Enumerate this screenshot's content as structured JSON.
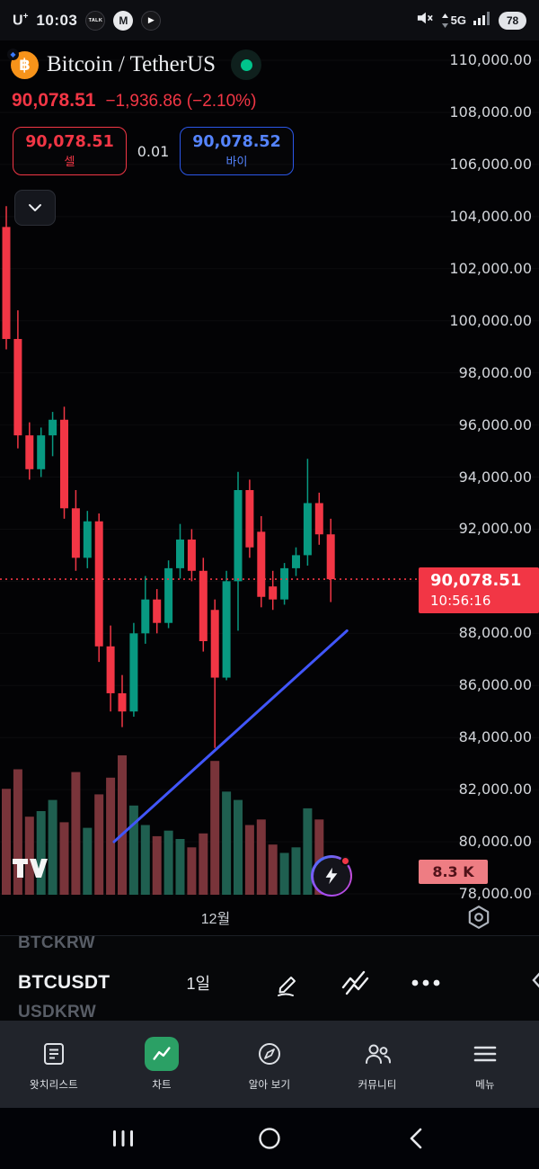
{
  "status_bar": {
    "carrier": "U",
    "carrier_sup": "+",
    "time": "10:03",
    "kakao_text": "TALK",
    "gmail_text": "M",
    "play_glyph": "▶",
    "network": "5G",
    "battery_percent": "78"
  },
  "header": {
    "title": "Bitcoin / TetherUS",
    "bitcoin_glyph": "฿",
    "badge_glyph": "◆",
    "price": "90,078.51",
    "change": "−1,936.86 (−2.10%)",
    "sell_price": "90,078.51",
    "sell_label": "셀",
    "spread": "0.01",
    "buy_price": "90,078.52",
    "buy_label": "바이"
  },
  "ticker_panel": {
    "prev_symbol": "BTCKRW",
    "symbol": "BTCUSDT",
    "interval": "1일",
    "next_symbol": "USDKRW"
  },
  "bottom_nav": {
    "active_index": 1,
    "items": [
      {
        "label": "왓치리스트"
      },
      {
        "label": "차트"
      },
      {
        "label": "알아 보기"
      },
      {
        "label": "커뮤니티"
      },
      {
        "label": "메뉴"
      }
    ]
  },
  "chart_data": {
    "type": "candlestick",
    "symbol": "BTCUSDT",
    "interval": "1일",
    "title": "Bitcoin / TetherUS",
    "last_price": 90078.51,
    "last_price_label": "90,078.51",
    "countdown": "10:56:16",
    "volume_label": "8.3 K",
    "x_label": "12월",
    "y_axis": {
      "min": 78000,
      "max": 110000,
      "tick_step": 2000,
      "ticks": [
        {
          "price": 110000,
          "label": "110,000.00"
        },
        {
          "price": 108000,
          "label": "108,000.00"
        },
        {
          "price": 106000,
          "label": "106,000.00"
        },
        {
          "price": 104000,
          "label": "104,000.00"
        },
        {
          "price": 102000,
          "label": "102,000.00"
        },
        {
          "price": 100000,
          "label": "100,000.00"
        },
        {
          "price": 98000,
          "label": "98,000.00"
        },
        {
          "price": 96000,
          "label": "96,000.00"
        },
        {
          "price": 94000,
          "label": "94,000.00"
        },
        {
          "price": 92000,
          "label": "92,000.00"
        },
        {
          "price": 90000,
          "label": "90,000.00"
        },
        {
          "price": 88000,
          "label": "88,000.00"
        },
        {
          "price": 86000,
          "label": "86,000.00"
        },
        {
          "price": 84000,
          "label": "84,000.00"
        },
        {
          "price": 82000,
          "label": "82,000.00"
        },
        {
          "price": 80000,
          "label": "80,000.00"
        },
        {
          "price": 78000,
          "label": "78,000.00"
        }
      ]
    },
    "candles": [
      [
        103600,
        104400,
        98900,
        99300
      ],
      [
        99300,
        100400,
        95100,
        95600
      ],
      [
        95600,
        96100,
        93900,
        94300
      ],
      [
        94300,
        95900,
        94000,
        95600
      ],
      [
        95600,
        96500,
        94800,
        96200
      ],
      [
        96200,
        96700,
        92400,
        92800
      ],
      [
        92800,
        93500,
        90400,
        90900
      ],
      [
        90900,
        92700,
        90500,
        92300
      ],
      [
        92300,
        92600,
        86900,
        87500
      ],
      [
        87500,
        88300,
        85000,
        85700
      ],
      [
        85700,
        86400,
        84400,
        85000
      ],
      [
        85000,
        88400,
        84800,
        88000
      ],
      [
        88000,
        90200,
        87600,
        89300
      ],
      [
        89300,
        89700,
        88000,
        88400
      ],
      [
        88400,
        90800,
        88200,
        90500
      ],
      [
        90500,
        92200,
        90100,
        91600
      ],
      [
        91600,
        92000,
        90000,
        90400
      ],
      [
        90400,
        90900,
        87300,
        87700
      ],
      [
        88900,
        89300,
        83600,
        86300
      ],
      [
        86300,
        90400,
        86200,
        90000
      ],
      [
        90000,
        94200,
        88100,
        93500
      ],
      [
        93500,
        93900,
        90900,
        91300
      ],
      [
        91900,
        92500,
        89000,
        89400
      ],
      [
        89800,
        90400,
        88900,
        89300
      ],
      [
        89300,
        90700,
        89100,
        90500
      ],
      [
        90500,
        91300,
        90200,
        91000
      ],
      [
        91000,
        94700,
        90600,
        93000
      ],
      [
        93000,
        93400,
        91400,
        91800
      ],
      [
        91800,
        92400,
        89200,
        90078.51
      ]
    ],
    "volumes": [
      38,
      45,
      28,
      30,
      34,
      26,
      44,
      24,
      36,
      42,
      50,
      32,
      25,
      21,
      23,
      20,
      17,
      22,
      48,
      37,
      34,
      25,
      27,
      18,
      15,
      17,
      31,
      27,
      8.3
    ],
    "trendline": {
      "from_index": 9.3,
      "from_price": 80000,
      "to_index": 29.4,
      "to_price": 88100
    },
    "colors": {
      "up": "#089981",
      "down": "#f23645",
      "volume_up": "#1f5f50",
      "volume_down": "#79343a",
      "trendline": "#4156fb",
      "accent_blue": "#2b57e8",
      "tag_red": "#f23645"
    }
  }
}
